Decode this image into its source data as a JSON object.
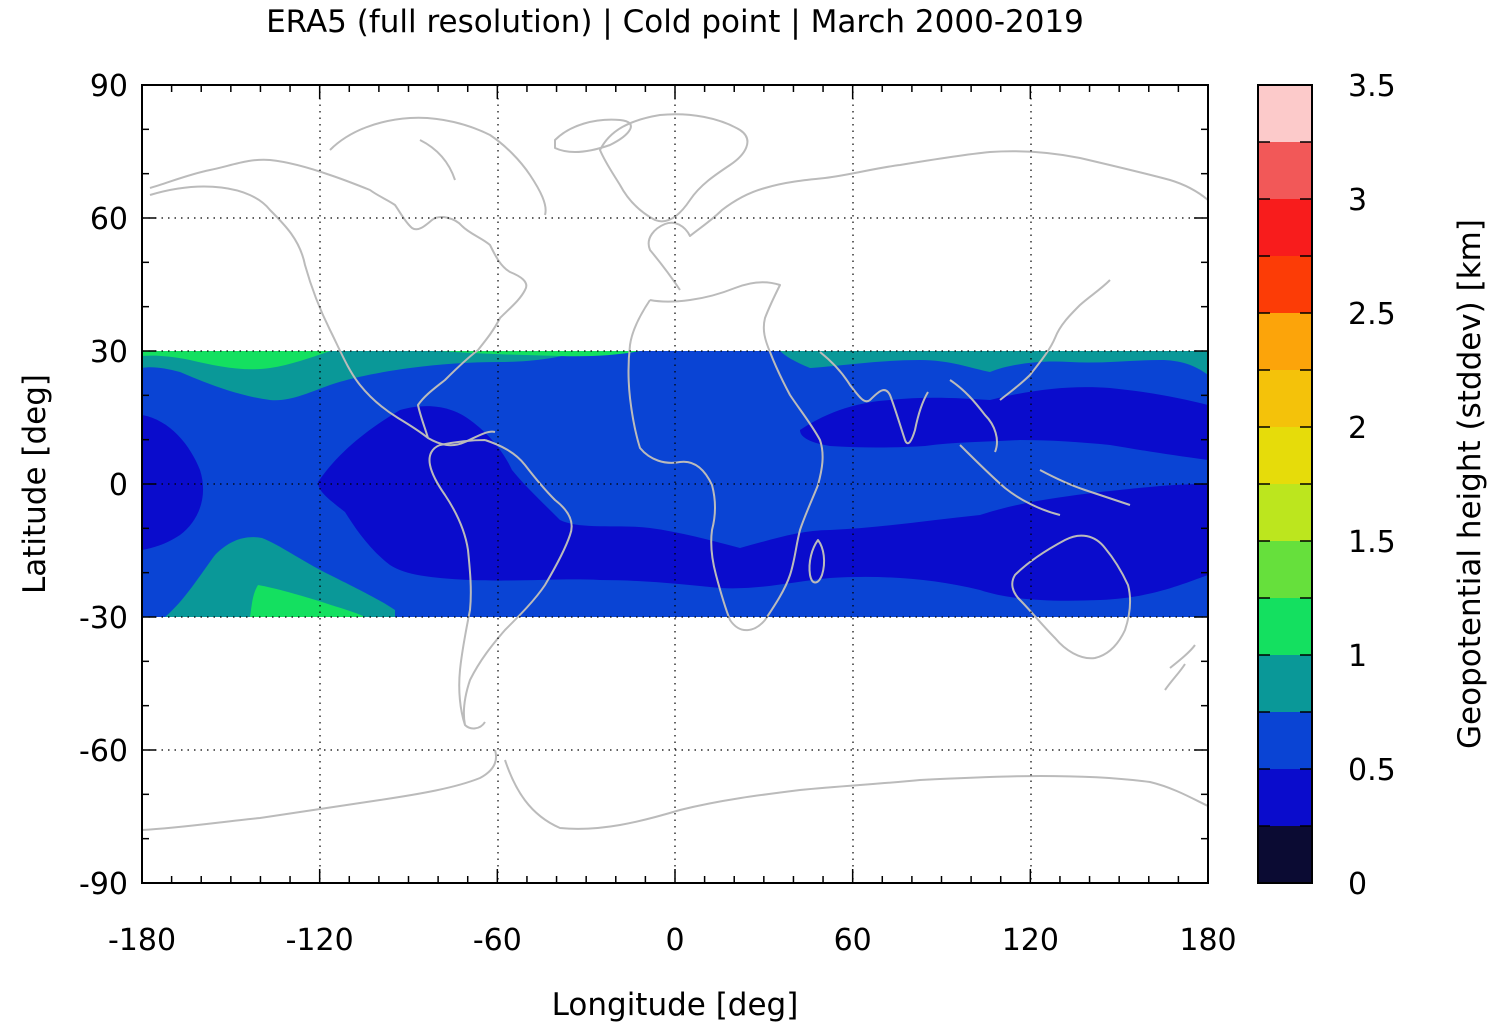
{
  "title": "ERA5 (full resolution) | Cold point | March 2000-2019",
  "map": {
    "x_axis": {
      "label": "Longitude [deg]",
      "range": [
        -180,
        180
      ],
      "ticks": [
        "-180",
        "-120",
        "-60",
        "0",
        "60",
        "120",
        "180"
      ],
      "tick_values": [
        -180,
        -120,
        -60,
        0,
        60,
        120,
        180
      ],
      "minor_step": 10
    },
    "y_axis": {
      "label": "Latitude [deg]",
      "range": [
        -90,
        90
      ],
      "ticks": [
        "90",
        "60",
        "30",
        "0",
        "-30",
        "-60",
        "-90"
      ],
      "tick_values": [
        90,
        60,
        30,
        0,
        -30,
        -60,
        -90
      ],
      "minor_step": 10
    },
    "grid": "dotted, every 60 deg longitude and 30 deg latitude",
    "data_band_lat": [
      -30,
      30
    ],
    "coastline_color": "#bbbbbb",
    "regions": [
      {
        "level": "0.25-0.5",
        "description": "darkest blue core: eastern Pacific / Amazon, South Atlantic-Indian Ocean belt, North Indian Ocean and western Pacific"
      },
      {
        "level": "0.5-0.75",
        "description": "medium blue background across most of the tropics"
      },
      {
        "level": "0.75-1.0",
        "description": "teal fringes along 30N and in the subtropical south-east Pacific"
      },
      {
        "level": "1.0-1.25",
        "description": "green patches near 30N in the central Pacific and near 30S, 150-120W"
      }
    ]
  },
  "colorbar": {
    "label": "Geopotential height (stddev) [km]",
    "range": [
      0,
      3.5
    ],
    "tick_labels": [
      "3.5",
      "3",
      "2.5",
      "2",
      "1.5",
      "1",
      "0.5",
      "0"
    ],
    "tick_values": [
      3.5,
      3,
      2.5,
      2,
      1.5,
      1,
      0.5,
      0
    ],
    "step": 0.25,
    "colors": [
      "#0b0b33",
      "#0a0ccc",
      "#0a44d4",
      "#0a9898",
      "#14e060",
      "#66e03c",
      "#bce61e",
      "#e6dc0a",
      "#f4c20a",
      "#fca40a",
      "#fc3c06",
      "#f81c1c",
      "#f25858",
      "#fccaca"
    ]
  }
}
